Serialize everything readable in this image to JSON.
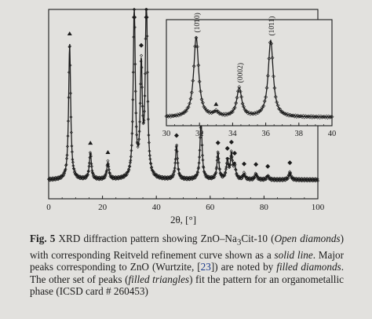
{
  "page": {
    "background": "#e2e1de",
    "ink": "#1c1c1c"
  },
  "caption": {
    "label": "Fig. 5",
    "text_before_marker_1": " XRD diffraction pattern showing ZnO–Na",
    "sub_1": "3",
    "text_after_sub": "Cit-10 (",
    "italic_1": "Open diamonds",
    "text_2": ") with corresponding Reitveld refinement curve shown as a ",
    "italic_2": "solid line",
    "text_3": ". Major peaks corresponding to ZnO (Wurtzite, [",
    "ref": "23",
    "text_4": "]) are noted by ",
    "italic_3": "filled diamonds",
    "text_5": ". The other set of peaks (",
    "italic_4": "filled triangles",
    "text_6": ") fit the pattern for an organometallic phase (ICSD card # 260453)"
  },
  "chart_data": [
    {
      "type": "line",
      "role": "main",
      "xlabel": "2θ, [°]",
      "ylabel": "",
      "xlim": [
        0,
        100
      ],
      "ylim": [
        0,
        100
      ],
      "xticks": [
        "0",
        "20",
        "40",
        "60",
        "80",
        "100"
      ],
      "series": [
        {
          "style": "open-diamonds"
        },
        {
          "style": "solid-line"
        }
      ],
      "zno_peaks_filled_diamonds": [
        31.8,
        34.4,
        36.3,
        47.5,
        56.6,
        62.9,
        66.4,
        67.9,
        69.1,
        72.6,
        77.0,
        81.4,
        89.6
      ],
      "organometallic_peaks_filled_triangles": [
        7.8,
        15.5,
        22.0
      ],
      "profile_peaks": [
        {
          "x": 7.8,
          "h": 72
        },
        {
          "x": 15.5,
          "h": 14
        },
        {
          "x": 22.0,
          "h": 9
        },
        {
          "x": 31.8,
          "h": 92
        },
        {
          "x": 34.4,
          "h": 58
        },
        {
          "x": 36.3,
          "h": 99
        },
        {
          "x": 47.5,
          "h": 18
        },
        {
          "x": 56.6,
          "h": 32
        },
        {
          "x": 62.9,
          "h": 14
        },
        {
          "x": 66.4,
          "h": 10
        },
        {
          "x": 67.9,
          "h": 13
        },
        {
          "x": 69.1,
          "h": 7
        },
        {
          "x": 72.6,
          "h": 3
        },
        {
          "x": 77.0,
          "h": 3
        },
        {
          "x": 81.4,
          "h": 2
        },
        {
          "x": 89.6,
          "h": 4
        }
      ],
      "baseline": 10
    },
    {
      "type": "line",
      "role": "inset",
      "xlim": [
        30,
        40
      ],
      "ylim": [
        0,
        100
      ],
      "xticks": [
        "30",
        "32",
        "34",
        "36",
        "38",
        "40"
      ],
      "series": [
        {
          "style": "open-diamonds"
        },
        {
          "style": "solid-line"
        }
      ],
      "peak_labels": [
        {
          "x": 31.8,
          "label": "(10̄10)"
        },
        {
          "x": 34.4,
          "label": "(0002)"
        },
        {
          "x": 36.3,
          "label": "(10̄11)"
        }
      ],
      "organometallic_peaks_filled_triangles": [
        33.0
      ],
      "profile_peaks": [
        {
          "x": 31.8,
          "h": 75
        },
        {
          "x": 34.4,
          "h": 27
        },
        {
          "x": 36.3,
          "h": 72
        },
        {
          "x": 33.0,
          "h": 4
        }
      ],
      "baseline": 8
    }
  ]
}
